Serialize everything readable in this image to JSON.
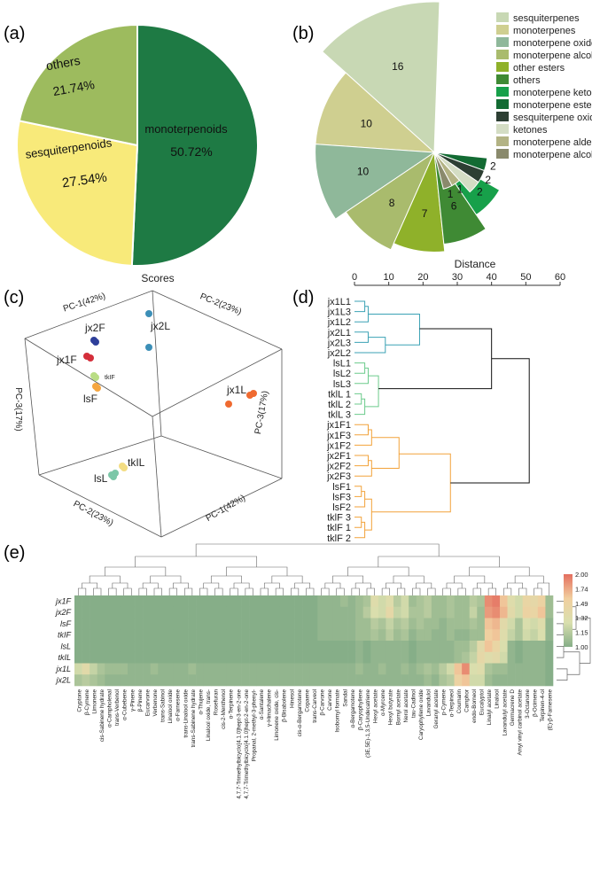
{
  "panels": {
    "a": "(a)",
    "b": "(b)",
    "c": "(c)",
    "d": "(d)",
    "e": "(e)"
  },
  "chart_data": [
    {
      "id": "a",
      "type": "pie",
      "slices": [
        {
          "label": "monoterpenoids",
          "value": 50.72,
          "value_label": "50.72%",
          "color": "#1e7a44"
        },
        {
          "label": "sesquiterpenoids",
          "value": 27.54,
          "value_label": "27.54%",
          "color": "#f8ea7a"
        },
        {
          "label": "others",
          "value": 21.74,
          "value_label": "21.74%",
          "color": "#9dbb5e"
        }
      ]
    },
    {
      "id": "b",
      "type": "pie",
      "subtype": "nightingale-rose",
      "segments": [
        {
          "label": "sesquiterpenes",
          "value": 16,
          "value_label": "16",
          "color": "#c8d8b4"
        },
        {
          "label": "monoterpenes",
          "value": 10,
          "value_label": "10",
          "color": "#cfcf90"
        },
        {
          "label": "monoterpene oxides",
          "value": 10,
          "value_label": "10",
          "color": "#8fb89a"
        },
        {
          "label": "monoterpene alcohols",
          "value": 8,
          "value_label": "8",
          "color": "#a9bb6d"
        },
        {
          "label": "other esters",
          "value": 7,
          "value_label": "7",
          "color": "#8fb12a"
        },
        {
          "label": "others",
          "value": 6,
          "value_label": "6",
          "color": "#3f8a34"
        },
        {
          "label": "monoterpene ketones",
          "value": 4,
          "value_label": "4",
          "color": "#17a04a"
        },
        {
          "label": "monoterpene esters",
          "value": 2,
          "value_label": "2",
          "color": "#136b33"
        },
        {
          "label": "sesquiterpene oxides",
          "value": 2,
          "value_label": "2",
          "color": "#2d3f33"
        },
        {
          "label": "ketones",
          "value": 2,
          "value_label": "2",
          "color": "#d4ddc4"
        },
        {
          "label": "monoterpene aldehydes",
          "value": 1,
          "value_label": "1",
          "color": "#b3b384"
        },
        {
          "label": "monoterpene alcohols",
          "value": 1,
          "value_label": "1",
          "color": "#8a8a6c"
        }
      ]
    },
    {
      "id": "c",
      "type": "scatter",
      "title": "Scores",
      "axes": {
        "pc1_top": "PC-1(42%)",
        "pc2_top": "PC-2(23%)",
        "pc3_left": "PC-3(17%)",
        "pc3_right": "PC-3(17%)",
        "pc2_bottom": "PC-2(23%)",
        "pc1_bottom": "PC-1(42%)"
      },
      "groups": [
        {
          "label": "jx2F",
          "color": "#2e3f9a"
        },
        {
          "label": "jx1F",
          "color": "#d42e3a"
        },
        {
          "label": "tkIF",
          "color": "#b9dd84"
        },
        {
          "label": "lsF",
          "color": "#f5a640"
        },
        {
          "label": "jx2L",
          "color": "#3c8fb7"
        },
        {
          "label": "jx1L",
          "color": "#ef6a30"
        },
        {
          "label": "tkIL",
          "color": "#f3dd83"
        },
        {
          "label": "lsL",
          "color": "#7cc7a8"
        }
      ]
    },
    {
      "id": "d",
      "type": "dendrogram",
      "xlabel": "Distance",
      "ticks": [
        0,
        10,
        20,
        30,
        40,
        50,
        60
      ],
      "leaves": [
        "jx1L1",
        "jx1L3",
        "jx1L2",
        "jx2L1",
        "jx2L3",
        "jx2L2",
        "lsL1",
        "lsL2",
        "lsL3",
        "tklL 1",
        "tklL 2",
        "tklL 3",
        "jx1F1",
        "jx1F3",
        "jx1F2",
        "jx2F1",
        "jx2F2",
        "jx2F3",
        "lsF1",
        "lsF3",
        "lsF2",
        "tklF 3",
        "tklF 1",
        "tklF 2"
      ],
      "cluster_colors": [
        "#3ba2b5",
        "#6ccb8c",
        "#f2a23a"
      ],
      "merges": {
        "blue_cluster": 19,
        "green_cluster": 7,
        "orange_cluster": 28,
        "blue_green": 40,
        "root": 51
      }
    },
    {
      "id": "e",
      "type": "heatmap",
      "rows": [
        "jx1F",
        "jx2F",
        "lsF",
        "tkIF",
        "lsL",
        "tkIL",
        "jx1L",
        "jx2L"
      ],
      "columns": [
        "Cryptone",
        "β-Cymene",
        "Limonene",
        "cis-Sabinene hydrate",
        "α-Campholenal",
        "trans-Verbenol",
        "α-Cubebene",
        "γ-Pinene",
        "β-Pinene",
        "Eucarvone",
        "Verbenone",
        "trans-Sabinol",
        "Linalool oxide",
        "α-Farnesene",
        "trans-Linalool oxide",
        "trans-Sabinene hydrate",
        "α-Thujene",
        "Linalool oxide, trans-",
        "Rosefuran",
        "cis-2-Menthenol",
        "α-Terpinene",
        "4,7,7-Trimethylbicyclo[4.1.0]hept-3-en-2-one",
        "4,7,7-Trimethylbicyclo[4.1.0]hept-2-en-2-one",
        "Propanal, 2-methyl-3-phenyl-",
        "α-Santalene",
        "γ-Himachalene",
        "Limonene oxide, cis-",
        "β-Bisabolene",
        "Hinesol",
        "cis-α-Bergamotene",
        "Copaene",
        "trans-Carveol",
        "β-Carvone",
        "Carvone",
        "Isobornyl formate",
        "Sandal",
        "α-Bergamotene",
        "β-Caryophyllene",
        "(3E,5E)-1,3,5-Undecatriene",
        "Hexyl acetate",
        "α-Myrcene",
        "Hexyl butyrate",
        "Bornyl acetate",
        "Nerol acetate",
        "tau-Cadinol",
        "Caryophyllene oxide",
        "Lavandulol",
        "Geranyl acetate",
        "p-Cymene",
        "α-Terpineol",
        "Coumarin",
        "Camphor",
        "endo-Borneol",
        "Eucalyptol",
        "Linalyl acetate",
        "Linalool",
        "Lavandulyl acetate",
        "Germacrene D",
        "Amyl vinyl carbinol acetate",
        "3-Octanone",
        "β-Ocimene",
        "Terpinen-4-ol",
        "(E)-β-Farnesene"
      ],
      "colorbar": {
        "min": 1.0,
        "max": 2.0,
        "ticks": [
          "2.00",
          "1.74",
          "1.49",
          "1.32",
          "1.15",
          "1.00"
        ],
        "colors": [
          "#86ae88",
          "#d9dfae",
          "#f1cf9f",
          "#e46f5f"
        ]
      },
      "values": [
        [
          1.0,
          1.0,
          1.0,
          1.0,
          1.0,
          1.0,
          1.0,
          1.0,
          1.0,
          1.0,
          1.0,
          1.0,
          1.0,
          1.0,
          1.0,
          1.0,
          1.0,
          1.0,
          1.0,
          1.0,
          1.0,
          1.0,
          1.0,
          1.0,
          1.0,
          1.0,
          1.0,
          1.0,
          1.0,
          1.0,
          1.0,
          1.0,
          1.05,
          1.05,
          1.05,
          1.1,
          1.05,
          1.1,
          1.15,
          1.4,
          1.3,
          1.4,
          1.2,
          1.3,
          1.1,
          1.15,
          1.2,
          1.1,
          1.1,
          1.15,
          1.1,
          1.1,
          1.2,
          1.15,
          1.9,
          1.95,
          1.7,
          1.4,
          1.3,
          1.55,
          1.5,
          1.6,
          1.1
        ],
        [
          1.0,
          1.0,
          1.0,
          1.0,
          1.0,
          1.0,
          1.0,
          1.0,
          1.0,
          1.0,
          1.0,
          1.0,
          1.0,
          1.0,
          1.0,
          1.0,
          1.0,
          1.0,
          1.0,
          1.0,
          1.0,
          1.0,
          1.0,
          1.0,
          1.0,
          1.0,
          1.0,
          1.0,
          1.0,
          1.0,
          1.0,
          1.0,
          1.05,
          1.05,
          1.05,
          1.05,
          1.05,
          1.1,
          1.2,
          1.35,
          1.3,
          1.5,
          1.25,
          1.3,
          1.15,
          1.15,
          1.2,
          1.1,
          1.1,
          1.15,
          1.1,
          1.1,
          1.25,
          1.1,
          1.85,
          1.9,
          1.75,
          1.45,
          1.3,
          1.6,
          1.55,
          1.7,
          1.1
        ],
        [
          1.0,
          1.0,
          1.0,
          1.0,
          1.0,
          1.0,
          1.0,
          1.0,
          1.0,
          1.0,
          1.0,
          1.0,
          1.0,
          1.0,
          1.0,
          1.0,
          1.0,
          1.0,
          1.0,
          1.0,
          1.0,
          1.0,
          1.0,
          1.0,
          1.0,
          1.0,
          1.0,
          1.0,
          1.0,
          1.0,
          1.0,
          1.0,
          1.05,
          1.05,
          1.05,
          1.05,
          1.05,
          1.1,
          1.1,
          1.2,
          1.15,
          1.25,
          1.15,
          1.2,
          1.1,
          1.15,
          1.1,
          1.1,
          1.05,
          1.1,
          1.1,
          1.1,
          1.15,
          1.1,
          1.7,
          1.75,
          1.45,
          1.3,
          1.15,
          1.35,
          1.3,
          1.4,
          1.05
        ],
        [
          1.0,
          1.0,
          1.0,
          1.0,
          1.0,
          1.0,
          1.0,
          1.0,
          1.0,
          1.0,
          1.0,
          1.0,
          1.0,
          1.0,
          1.0,
          1.0,
          1.0,
          1.0,
          1.0,
          1.0,
          1.0,
          1.0,
          1.0,
          1.0,
          1.0,
          1.0,
          1.0,
          1.0,
          1.0,
          1.0,
          1.0,
          1.0,
          1.05,
          1.05,
          1.05,
          1.05,
          1.05,
          1.1,
          1.1,
          1.15,
          1.1,
          1.2,
          1.1,
          1.15,
          1.05,
          1.1,
          1.1,
          1.05,
          1.05,
          1.1,
          1.05,
          1.05,
          1.1,
          1.1,
          1.65,
          1.7,
          1.4,
          1.25,
          1.15,
          1.3,
          1.25,
          1.35,
          1.05
        ],
        [
          1.0,
          1.0,
          1.0,
          1.0,
          1.0,
          1.0,
          1.0,
          1.0,
          1.0,
          1.0,
          1.0,
          1.0,
          1.0,
          1.0,
          1.0,
          1.0,
          1.0,
          1.0,
          1.0,
          1.0,
          1.0,
          1.0,
          1.0,
          1.0,
          1.0,
          1.0,
          1.0,
          1.0,
          1.0,
          1.0,
          1.0,
          1.0,
          1.0,
          1.0,
          1.0,
          1.0,
          1.0,
          1.05,
          1.0,
          1.05,
          1.05,
          1.05,
          1.05,
          1.05,
          1.0,
          1.05,
          1.05,
          1.05,
          1.05,
          1.05,
          1.1,
          1.1,
          1.2,
          1.45,
          1.7,
          1.55,
          1.35,
          1.05,
          1.0,
          1.05,
          1.05,
          1.05,
          1.0
        ],
        [
          1.0,
          1.0,
          1.0,
          1.0,
          1.0,
          1.0,
          1.0,
          1.0,
          1.0,
          1.0,
          1.0,
          1.0,
          1.0,
          1.0,
          1.0,
          1.0,
          1.0,
          1.0,
          1.0,
          1.0,
          1.0,
          1.0,
          1.0,
          1.0,
          1.0,
          1.0,
          1.0,
          1.0,
          1.0,
          1.0,
          1.0,
          1.0,
          1.0,
          1.0,
          1.0,
          1.0,
          1.0,
          1.05,
          1.0,
          1.05,
          1.05,
          1.05,
          1.05,
          1.05,
          1.0,
          1.05,
          1.05,
          1.05,
          1.05,
          1.05,
          1.1,
          1.15,
          1.25,
          1.5,
          1.4,
          1.45,
          1.3,
          1.05,
          1.0,
          1.05,
          1.05,
          1.05,
          1.0
        ],
        [
          1.3,
          1.45,
          1.25,
          1.15,
          1.1,
          1.1,
          1.1,
          1.05,
          1.05,
          1.05,
          1.1,
          1.05,
          1.05,
          1.05,
          1.05,
          1.1,
          1.05,
          1.05,
          1.05,
          1.05,
          1.05,
          1.05,
          1.05,
          1.05,
          1.05,
          1.05,
          1.05,
          1.05,
          1.05,
          1.05,
          1.05,
          1.05,
          1.05,
          1.05,
          1.05,
          1.05,
          1.05,
          1.1,
          1.05,
          1.05,
          1.1,
          1.05,
          1.05,
          1.1,
          1.05,
          1.1,
          1.15,
          1.1,
          1.2,
          1.3,
          1.7,
          1.9,
          1.35,
          1.4,
          1.15,
          1.1,
          1.1,
          1.05,
          1.05,
          1.05,
          1.05,
          1.05,
          1.0
        ],
        [
          1.15,
          1.2,
          1.15,
          1.1,
          1.05,
          1.05,
          1.05,
          1.05,
          1.05,
          1.05,
          1.05,
          1.05,
          1.05,
          1.05,
          1.05,
          1.05,
          1.05,
          1.05,
          1.05,
          1.05,
          1.05,
          1.05,
          1.05,
          1.05,
          1.05,
          1.05,
          1.05,
          1.05,
          1.05,
          1.05,
          1.05,
          1.05,
          1.05,
          1.05,
          1.05,
          1.05,
          1.05,
          1.05,
          1.05,
          1.05,
          1.05,
          1.05,
          1.05,
          1.05,
          1.05,
          1.05,
          1.1,
          1.05,
          1.15,
          1.2,
          1.6,
          1.7,
          1.3,
          1.3,
          1.1,
          1.05,
          1.05,
          1.05,
          1.05,
          1.05,
          1.05,
          1.05,
          1.0
        ]
      ]
    }
  ]
}
